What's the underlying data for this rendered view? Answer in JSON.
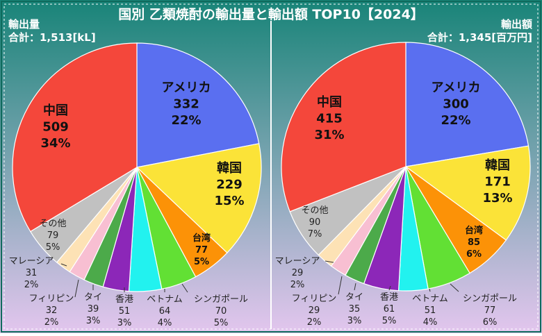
{
  "title": "国別 乙類焼酎の輸出量と輸出額 TOP10【2024】",
  "colors": {
    "background_top": "#188478",
    "background_bottom": "#e3c6ee",
    "frame": "#ffffff",
    "title_text": "#ffffff"
  },
  "left_panel": {
    "name": "輸出量",
    "total_text": "合計：1,513[kL]"
  },
  "right_panel": {
    "name": "輸出額",
    "total_text": "合計：1,345[百万円]"
  },
  "chart_data": [
    {
      "type": "pie",
      "title": "輸出量",
      "unit": "kL",
      "total": 1513,
      "slices": [
        {
          "label": "アメリカ",
          "value": 332,
          "percent": "22%",
          "color": "#5a6ff0"
        },
        {
          "label": "韓国",
          "value": 229,
          "percent": "15%",
          "color": "#fbe338"
        },
        {
          "label": "台湾",
          "value": 77,
          "percent": "5%",
          "color": "#fc9207"
        },
        {
          "label": "シンガポール",
          "value": 70,
          "percent": "5%",
          "color": "#62e034"
        },
        {
          "label": "ベトナム",
          "value": 64,
          "percent": "4%",
          "color": "#22f2ef"
        },
        {
          "label": "香港",
          "value": 51,
          "percent": "3%",
          "color": "#8c27b8"
        },
        {
          "label": "タイ",
          "value": 39,
          "percent": "3%",
          "color": "#4caa4a"
        },
        {
          "label": "フィリピン",
          "value": 32,
          "percent": "2%",
          "color": "#f8bfd2"
        },
        {
          "label": "マレーシア",
          "value": 31,
          "percent": "2%",
          "color": "#fde2b5"
        },
        {
          "label": "その他",
          "value": 79,
          "percent": "5%",
          "color": "#c1c1c1"
        },
        {
          "label": "中国",
          "value": 509,
          "percent": "34%",
          "color": "#f4473b"
        }
      ]
    },
    {
      "type": "pie",
      "title": "輸出額",
      "unit": "百万円",
      "total": 1345,
      "slices": [
        {
          "label": "アメリカ",
          "value": 300,
          "percent": "22%",
          "color": "#5a6ff0"
        },
        {
          "label": "韓国",
          "value": 171,
          "percent": "13%",
          "color": "#fbe338"
        },
        {
          "label": "台湾",
          "value": 85,
          "percent": "6%",
          "color": "#fc9207"
        },
        {
          "label": "シンガポール",
          "value": 77,
          "percent": "6%",
          "color": "#62e034"
        },
        {
          "label": "ベトナム",
          "value": 51,
          "percent": "4%",
          "color": "#22f2ef"
        },
        {
          "label": "香港",
          "value": 61,
          "percent": "5%",
          "color": "#8c27b8"
        },
        {
          "label": "タイ",
          "value": 35,
          "percent": "3%",
          "color": "#4caa4a"
        },
        {
          "label": "フィリピン",
          "value": 29,
          "percent": "2%",
          "color": "#f8bfd2"
        },
        {
          "label": "マレーシア",
          "value": 29,
          "percent": "2%",
          "color": "#fde2b5"
        },
        {
          "label": "その他",
          "value": 90,
          "percent": "7%",
          "color": "#c1c1c1"
        },
        {
          "label": "中国",
          "value": 415,
          "percent": "31%",
          "color": "#f4473b"
        }
      ]
    }
  ]
}
